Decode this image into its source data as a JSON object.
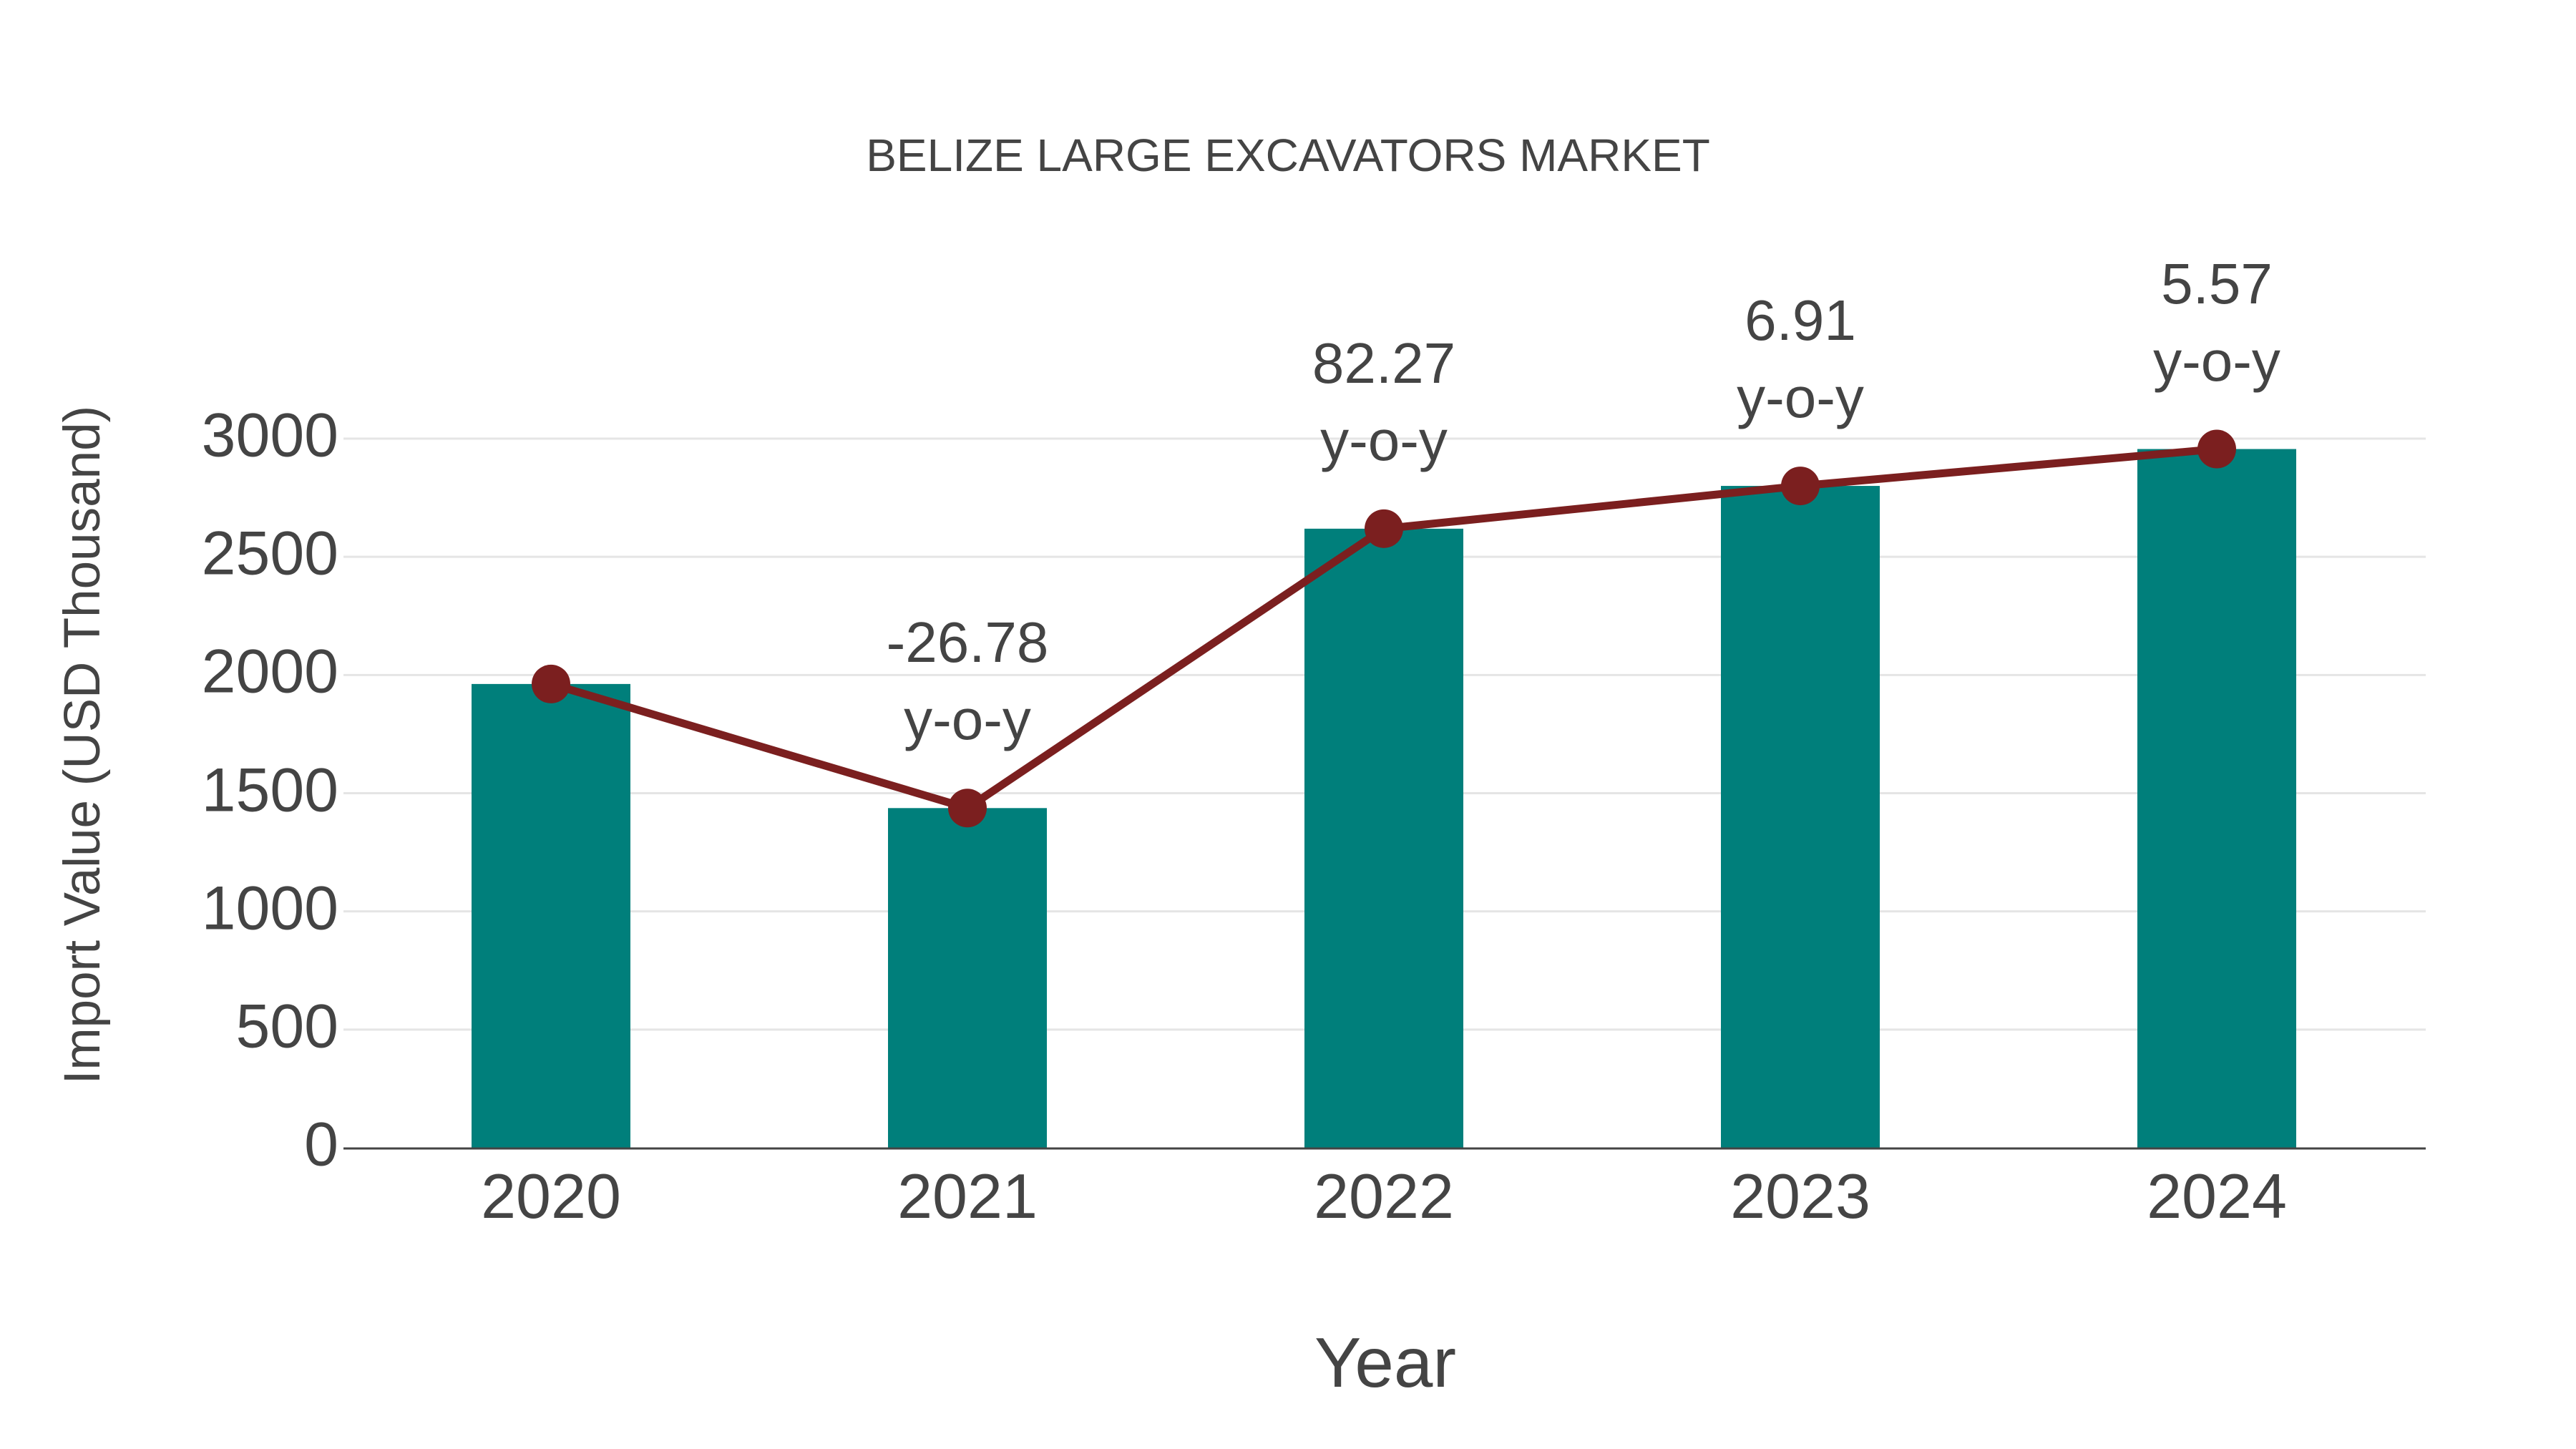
{
  "chart": {
    "title": "BELIZE LARGE EXCAVATORS MARKET",
    "x_axis_title": "Year",
    "y_axis_title": "Import Value (USD Thousand)",
    "y_ticks": [
      "0",
      "500",
      "1000",
      "1500",
      "2000",
      "2500",
      "3000"
    ],
    "x_ticks": [
      "2020",
      "2021",
      "2022",
      "2023",
      "2024"
    ],
    "annotations": [
      {
        "value": "",
        "suffix": ""
      },
      {
        "value": "-26.78",
        "suffix": "y-o-y"
      },
      {
        "value": "82.27",
        "suffix": "y-o-y"
      },
      {
        "value": "6.91",
        "suffix": "y-o-y"
      },
      {
        "value": "5.57",
        "suffix": "y-o-y"
      }
    ],
    "colors": {
      "bar": "#007F7B",
      "line": "#7B1F1F",
      "grid": "#E5E5E5",
      "axis": "#444444",
      "text": "#444444"
    }
  },
  "chart_data": {
    "type": "bar",
    "title": "BELIZE LARGE EXCAVATORS MARKET",
    "xlabel": "Year",
    "ylabel": "Import Value (USD Thousand)",
    "categories": [
      "2020",
      "2021",
      "2022",
      "2023",
      "2024"
    ],
    "series": [
      {
        "name": "Import Value (bar)",
        "type": "bar",
        "values": [
          1962,
          1437,
          2619,
          2800,
          2956
        ]
      },
      {
        "name": "Import Value (line)",
        "type": "line",
        "values": [
          1962,
          1437,
          2619,
          2800,
          2956
        ]
      }
    ],
    "yoy_growth_pct": [
      null,
      -26.78,
      82.27,
      6.91,
      5.57
    ],
    "annotations": [
      "",
      "-26.78 y-o-y",
      "82.27 y-o-y",
      "6.91 y-o-y",
      "5.57 y-o-y"
    ],
    "ylim": [
      0,
      3000
    ],
    "yticks": [
      0,
      500,
      1000,
      1500,
      2000,
      2500,
      3000
    ],
    "grid": true,
    "legend": "none"
  }
}
